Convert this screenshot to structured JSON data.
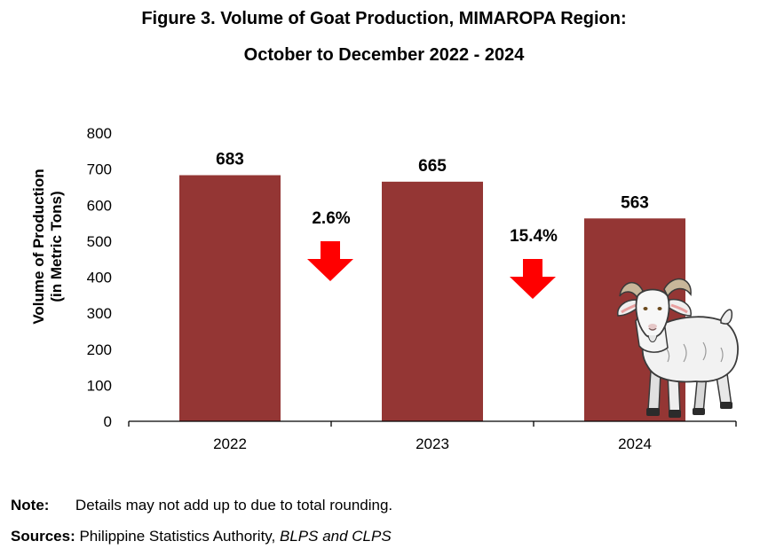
{
  "title": {
    "line1": "Figure 3. Volume of Goat Production, MIMAROPA Region:",
    "line2": "October to December 2022 - 2024"
  },
  "chart_data": {
    "type": "bar",
    "categories": [
      "2022",
      "2023",
      "2024"
    ],
    "values": [
      683,
      665,
      563
    ],
    "data_labels": [
      "683",
      "665",
      "563"
    ],
    "ylabel_lines": [
      "Volume of Production",
      "(in Metric Tons)"
    ],
    "xlabel": "",
    "ylim": [
      0,
      800
    ],
    "yticks": [
      0,
      100,
      200,
      300,
      400,
      500,
      600,
      700,
      800
    ],
    "grid": false,
    "bar_color": "#943634",
    "annotations": [
      {
        "text": "2.6%",
        "direction": "down",
        "between": [
          "2022",
          "2023"
        ]
      },
      {
        "text": "15.4%",
        "direction": "down",
        "between": [
          "2023",
          "2024"
        ]
      }
    ],
    "arrow_color": "#ff0000"
  },
  "illustration": {
    "icon": "goat-icon"
  },
  "note": {
    "label": "Note:",
    "text": "Details may not add up to due to total rounding."
  },
  "sources": {
    "label": "Sources:",
    "text": " Philippine Statistics Authority, ",
    "italic_text": "BLPS and CLPS"
  }
}
